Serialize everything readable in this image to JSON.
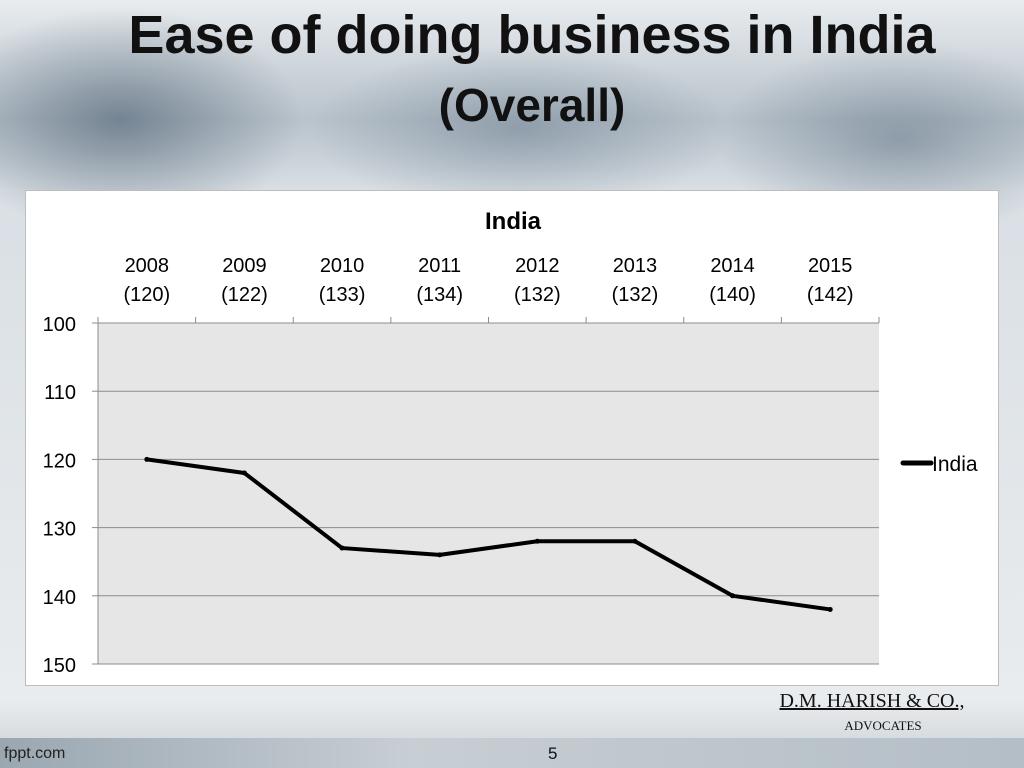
{
  "slide": {
    "title": "Ease of doing business in India",
    "subtitle": "(Overall)",
    "firm_name": "D.M. HARISH & CO.,",
    "firm_sub": "ADVOCATES",
    "footer_left": "fppt.com",
    "page_number": "5"
  },
  "chart_data": {
    "type": "line",
    "title": "India",
    "categories": [
      "2008",
      "2009",
      "2010",
      "2011",
      "2012",
      "2013",
      "2014",
      "2015"
    ],
    "category_sublabels": [
      "(120)",
      "(122)",
      "(133)",
      "(134)",
      "(132)",
      "(132)",
      "(140)",
      "(142)"
    ],
    "series": [
      {
        "name": "India",
        "values": [
          120,
          122,
          133,
          134,
          132,
          132,
          140,
          142
        ],
        "color": "#000000"
      }
    ],
    "ylim": [
      100,
      150
    ],
    "y_reversed": true,
    "y_ticks": [
      "100",
      "110",
      "120",
      "130",
      "140",
      "150"
    ],
    "x_axis_position": "top",
    "grid": true,
    "legend": "right",
    "xlabel": "",
    "ylabel": "",
    "plot_background": "#e6e6e6"
  }
}
